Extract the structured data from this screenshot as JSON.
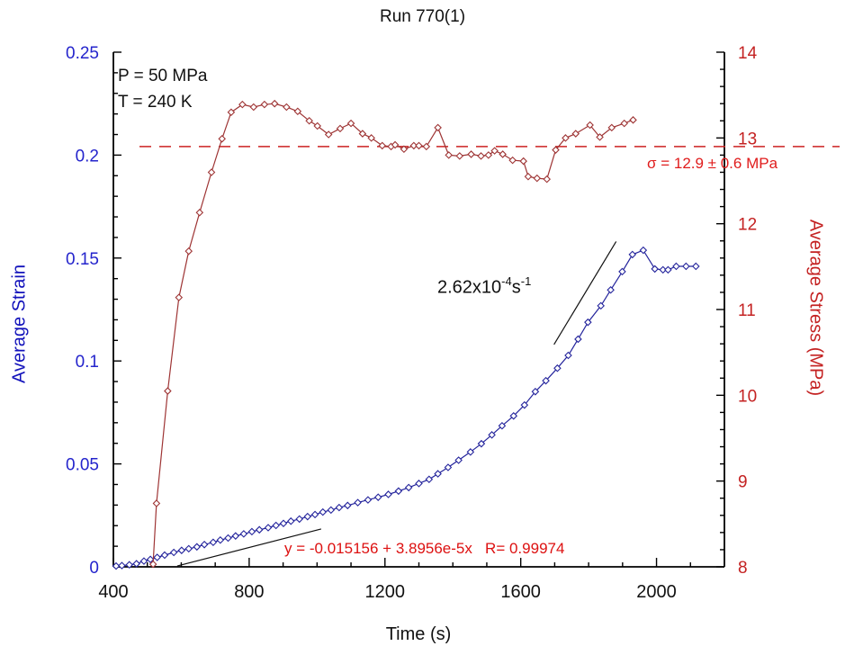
{
  "chart_data": {
    "type": "line",
    "title": "Run 770(1)",
    "xlabel": "Time (s)",
    "ylabel_left": "Average Strain",
    "ylabel_right": "Average Stress (MPa)",
    "grid": false,
    "axes": {
      "x": {
        "range": [
          400,
          2200
        ],
        "ticks": [
          400,
          800,
          1200,
          1600,
          2000
        ],
        "tick_labels": [
          "400",
          "800",
          "1200",
          "1600",
          "2000"
        ],
        "minor_step": 100
      },
      "left": {
        "range": [
          0,
          0.25
        ],
        "ticks": [
          0,
          0.05,
          0.1,
          0.15,
          0.2,
          0.25
        ],
        "tick_labels": [
          "0",
          "0.05",
          "0.1",
          "0.15",
          "0.2",
          "0.25"
        ],
        "minor_step": 0.01,
        "color": "#2424cc"
      },
      "right": {
        "range": [
          8,
          14
        ],
        "ticks": [
          8,
          9,
          10,
          11,
          12,
          13,
          14
        ],
        "tick_labels": [
          "8",
          "9",
          "10",
          "11",
          "12",
          "13",
          "14"
        ],
        "minor_step": 0.2,
        "color": "#c42222"
      }
    },
    "series": [
      {
        "name": "average-strain",
        "axis": "left",
        "color": "#24249c",
        "marker": "diamond-open",
        "points": [
          [
            408,
            0.0004
          ],
          [
            425,
            0.0006
          ],
          [
            447,
            0.001
          ],
          [
            468,
            0.0015
          ],
          [
            490,
            0.0028
          ],
          [
            509,
            0.0036
          ],
          [
            529,
            0.0046
          ],
          [
            551,
            0.0057
          ],
          [
            578,
            0.007
          ],
          [
            601,
            0.008
          ],
          [
            622,
            0.0088
          ],
          [
            646,
            0.0097
          ],
          [
            668,
            0.0108
          ],
          [
            694,
            0.0119
          ],
          [
            715,
            0.013
          ],
          [
            738,
            0.014
          ],
          [
            760,
            0.015
          ],
          [
            784,
            0.016
          ],
          [
            808,
            0.0171
          ],
          [
            830,
            0.018
          ],
          [
            856,
            0.019
          ],
          [
            879,
            0.0201
          ],
          [
            901,
            0.0211
          ],
          [
            923,
            0.0222
          ],
          [
            948,
            0.0232
          ],
          [
            972,
            0.0244
          ],
          [
            994,
            0.0254
          ],
          [
            1017,
            0.0266
          ],
          [
            1041,
            0.0276
          ],
          [
            1065,
            0.0288
          ],
          [
            1090,
            0.0298
          ],
          [
            1120,
            0.0312
          ],
          [
            1150,
            0.0325
          ],
          [
            1180,
            0.0338
          ],
          [
            1210,
            0.0352
          ],
          [
            1240,
            0.0368
          ],
          [
            1270,
            0.0385
          ],
          [
            1300,
            0.0405
          ],
          [
            1330,
            0.0425
          ],
          [
            1356,
            0.0452
          ],
          [
            1386,
            0.0483
          ],
          [
            1417,
            0.0518
          ],
          [
            1452,
            0.0558
          ],
          [
            1484,
            0.0598
          ],
          [
            1515,
            0.0641
          ],
          [
            1545,
            0.0685
          ],
          [
            1579,
            0.0733
          ],
          [
            1611,
            0.0786
          ],
          [
            1643,
            0.0851
          ],
          [
            1674,
            0.0904
          ],
          [
            1708,
            0.0965
          ],
          [
            1740,
            0.1027
          ],
          [
            1769,
            0.1106
          ],
          [
            1798,
            0.1188
          ],
          [
            1836,
            0.1268
          ],
          [
            1865,
            0.1345
          ],
          [
            1899,
            0.1434
          ],
          [
            1929,
            0.1517
          ],
          [
            1961,
            0.1538
          ],
          [
            1995,
            0.1447
          ],
          [
            2019,
            0.1443
          ],
          [
            2034,
            0.1443
          ],
          [
            2058,
            0.146
          ],
          [
            2087,
            0.146
          ],
          [
            2116,
            0.146
          ]
        ]
      },
      {
        "name": "average-stress",
        "axis": "right",
        "color": "#9e3434",
        "marker": "diamond-open",
        "points": [
          [
            517,
            8.03
          ],
          [
            527,
            8.74
          ],
          [
            560,
            10.05
          ],
          [
            593,
            11.14
          ],
          [
            622,
            11.68
          ],
          [
            654,
            12.13
          ],
          [
            689,
            12.6
          ],
          [
            720,
            12.99
          ],
          [
            747,
            13.3
          ],
          [
            780,
            13.39
          ],
          [
            813,
            13.36
          ],
          [
            845,
            13.39
          ],
          [
            875,
            13.4
          ],
          [
            910,
            13.36
          ],
          [
            943,
            13.31
          ],
          [
            977,
            13.2
          ],
          [
            1001,
            13.14
          ],
          [
            1034,
            13.04
          ],
          [
            1068,
            13.11
          ],
          [
            1100,
            13.17
          ],
          [
            1134,
            13.05
          ],
          [
            1160,
            13.0
          ],
          [
            1192,
            12.91
          ],
          [
            1218,
            12.9
          ],
          [
            1230,
            12.92
          ],
          [
            1256,
            12.87
          ],
          [
            1285,
            12.91
          ],
          [
            1300,
            12.91
          ],
          [
            1322,
            12.9
          ],
          [
            1356,
            13.12
          ],
          [
            1388,
            12.8
          ],
          [
            1420,
            12.79
          ],
          [
            1454,
            12.81
          ],
          [
            1483,
            12.79
          ],
          [
            1505,
            12.8
          ],
          [
            1523,
            12.85
          ],
          [
            1547,
            12.81
          ],
          [
            1576,
            12.74
          ],
          [
            1608,
            12.73
          ],
          [
            1622,
            12.55
          ],
          [
            1648,
            12.53
          ],
          [
            1677,
            12.52
          ],
          [
            1703,
            12.86
          ],
          [
            1732,
            13.0
          ],
          [
            1762,
            13.05
          ],
          [
            1804,
            13.15
          ],
          [
            1833,
            13.01
          ],
          [
            1868,
            13.12
          ],
          [
            1905,
            13.17
          ],
          [
            1931,
            13.21
          ]
        ]
      }
    ],
    "reference_line": {
      "axis": "right",
      "value": 12.9,
      "style": "dashed",
      "color": "#cc2222",
      "label": "σ = 12.9 ± 0.6 MPa"
    },
    "fit_lines": [
      {
        "axis": "left",
        "from": [
          588,
          0.0004
        ],
        "to": [
          1012,
          0.0184
        ],
        "color": "#111111"
      },
      {
        "axis": "left",
        "from": [
          1698,
          0.108
        ],
        "to": [
          1881,
          0.158
        ],
        "color": "#111111"
      }
    ],
    "annotations": {
      "pressure": "P = 50 MPa",
      "temperature": "T = 240 K",
      "fit_equation": "y = -0.015156 + 3.8956e-5x   R= 0.99974",
      "strain_rate": {
        "base": "2.62x10",
        "exp": "-4",
        "unit": "s",
        "unit_exp": "-1"
      }
    }
  }
}
